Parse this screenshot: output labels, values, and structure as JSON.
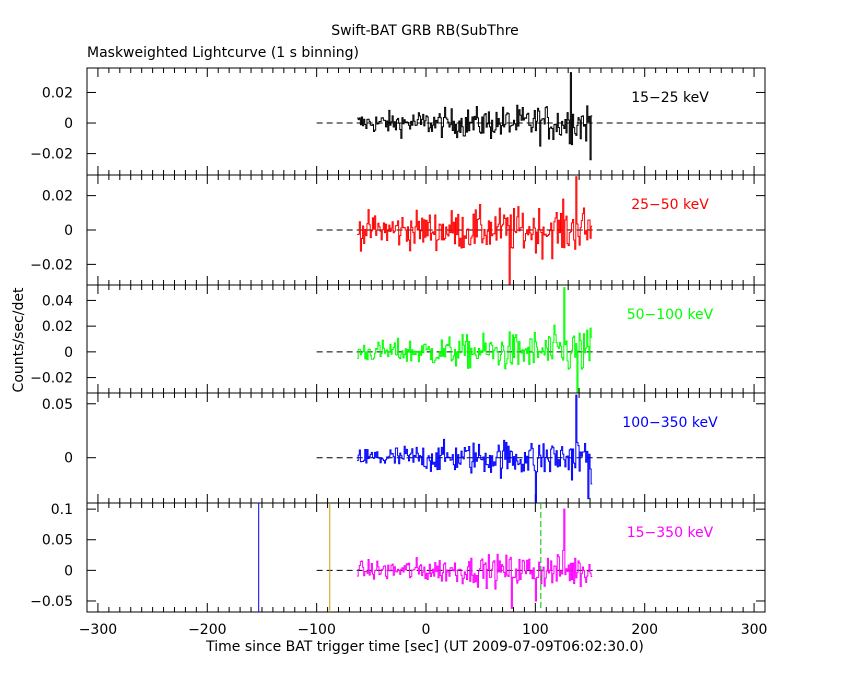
{
  "chart_data": {
    "type": "line",
    "title": "Swift-BAT GRB RB(SubThre",
    "subtitle": "Maskweighted Lightcurve (1 s binning)",
    "xlabel": "Time since BAT trigger time [sec] (UT 2009-07-09T06:02:30.0)",
    "ylabel": "Counts/sec/det",
    "xlim": [
      -310,
      310
    ],
    "xticks": [
      -300,
      -200,
      -100,
      0,
      100,
      200,
      300
    ],
    "grid": false,
    "data_range": [
      -63,
      152
    ],
    "zero_line_dashed_range": [
      -100,
      300
    ],
    "markers": [
      {
        "x": -153,
        "color": "#0000ff"
      },
      {
        "x": -88,
        "color": "#c8a000"
      },
      {
        "x": 105,
        "color": "#00c000",
        "dashed": true
      }
    ],
    "panels": [
      {
        "label": "15−25 keV",
        "color": "#000000",
        "ylim": [
          -0.034,
          0.036
        ],
        "yticks": [
          -0.02,
          0,
          0.02
        ],
        "ytick_labels": [
          "−0.02",
          "0",
          "0.02"
        ],
        "noise_start": 0.006,
        "noise_end": 0.013,
        "spikes": [
          [
            150,
            -0.024
          ],
          [
            132,
            0.033
          ]
        ]
      },
      {
        "label": "25−50 keV",
        "color": "#ff0000",
        "ylim": [
          -0.032,
          0.032
        ],
        "yticks": [
          -0.02,
          0,
          0.02
        ],
        "ytick_labels": [
          "−0.02",
          "0",
          "0.02"
        ],
        "noise_start": 0.009,
        "noise_end": 0.014,
        "spikes": [
          [
            137,
            0.031
          ],
          [
            76,
            -0.032
          ]
        ]
      },
      {
        "label": "50−100 keV",
        "color": "#00ff00",
        "ylim": [
          -0.032,
          0.052
        ],
        "yticks": [
          -0.02,
          0,
          0.02,
          0.04
        ],
        "ytick_labels": [
          "−0.02",
          "0",
          "0.02",
          "0.04"
        ],
        "noise_start": 0.007,
        "noise_end": 0.018,
        "spikes": [
          [
            126,
            0.05
          ],
          [
            138,
            -0.032
          ]
        ]
      },
      {
        "label": "100−350 keV",
        "color": "#0000ff",
        "ylim": [
          -0.042,
          0.06
        ],
        "yticks": [
          0,
          0.05
        ],
        "ytick_labels": [
          "0",
          "0.05"
        ],
        "noise_start": 0.009,
        "noise_end": 0.02,
        "spikes": [
          [
            137,
            0.058
          ],
          [
            100,
            -0.042
          ],
          [
            148,
            -0.038
          ]
        ]
      },
      {
        "label": "15−350 keV",
        "color": "#ff00ff",
        "ylim": [
          -0.068,
          0.11
        ],
        "yticks": [
          -0.05,
          0,
          0.05,
          0.1
        ],
        "ytick_labels": [
          "−0.05",
          "0",
          "0.05",
          "0.1"
        ],
        "noise_start": 0.014,
        "noise_end": 0.03,
        "spikes": [
          [
            126,
            0.1
          ],
          [
            78,
            -0.062
          ],
          [
            100,
            -0.05
          ]
        ]
      }
    ]
  }
}
